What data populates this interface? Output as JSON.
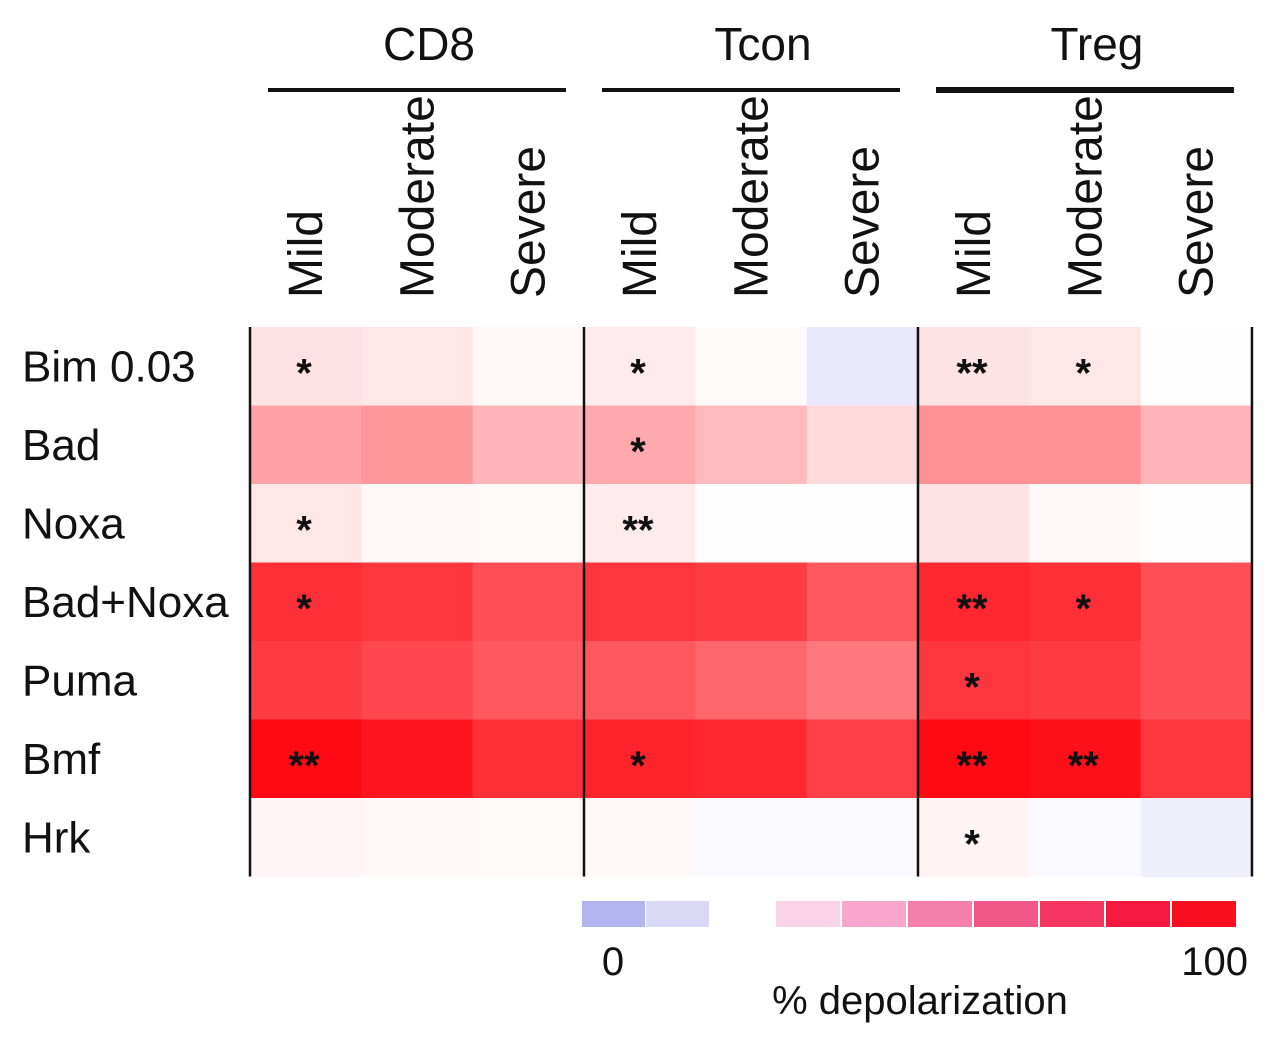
{
  "chart_data": {
    "type": "heatmap",
    "groups": [
      {
        "name": "CD8",
        "columns": [
          "Mild",
          "Moderate",
          "Severe"
        ]
      },
      {
        "name": "Tcon",
        "columns": [
          "Mild",
          "Moderate",
          "Severe"
        ]
      },
      {
        "name": "Treg",
        "columns": [
          "Mild",
          "Moderate",
          "Severe"
        ]
      }
    ],
    "rows": [
      "Bim 0.03",
      "Bad",
      "Noxa",
      "Bad+Noxa",
      "Puma",
      "Bmf",
      "Hrk"
    ],
    "values": [
      [
        12,
        10,
        3,
        8,
        2,
        -4,
        12,
        10,
        1
      ],
      [
        38,
        42,
        30,
        35,
        28,
        15,
        45,
        45,
        30
      ],
      [
        10,
        3,
        2,
        8,
        1,
        1,
        12,
        3,
        1
      ],
      [
        85,
        82,
        72,
        82,
        80,
        68,
        88,
        85,
        72
      ],
      [
        80,
        75,
        68,
        68,
        62,
        55,
        82,
        80,
        72
      ],
      [
        100,
        95,
        85,
        90,
        88,
        78,
        100,
        98,
        82
      ],
      [
        4,
        3,
        2,
        3,
        -1,
        -1,
        5,
        -1,
        -3
      ]
    ],
    "significance": [
      [
        "*",
        "",
        "",
        "*",
        "",
        "",
        "**",
        "*",
        ""
      ],
      [
        "",
        "",
        "",
        "*",
        "",
        "",
        "",
        "",
        ""
      ],
      [
        "*",
        "",
        "",
        "**",
        "",
        "",
        "",
        "",
        ""
      ],
      [
        "*",
        "",
        "",
        "",
        "",
        "",
        "**",
        "*",
        ""
      ],
      [
        "",
        "",
        "",
        "",
        "",
        "",
        "*",
        "",
        ""
      ],
      [
        "**",
        "",
        "",
        "*",
        "",
        "",
        "**",
        "**",
        ""
      ],
      [
        "",
        "",
        "",
        "",
        "",
        "",
        "*",
        "",
        ""
      ]
    ],
    "colorbar": {
      "label": "% depolarization",
      "min_label": "0",
      "max_label": "100",
      "negative_colors": [
        "#b3b3f0",
        "#d9d9f5"
      ],
      "positive_colors": [
        "#fbd3e6",
        "#f9a6cc",
        "#f57fab",
        "#f25587",
        "#f43560",
        "#f6193f",
        "#fa0d1e"
      ]
    },
    "scale": {
      "min": -10,
      "max": 100
    },
    "colors": {
      "low": "#c8c8f5",
      "zero": "#ffffff",
      "high": "#ff0a14"
    }
  }
}
